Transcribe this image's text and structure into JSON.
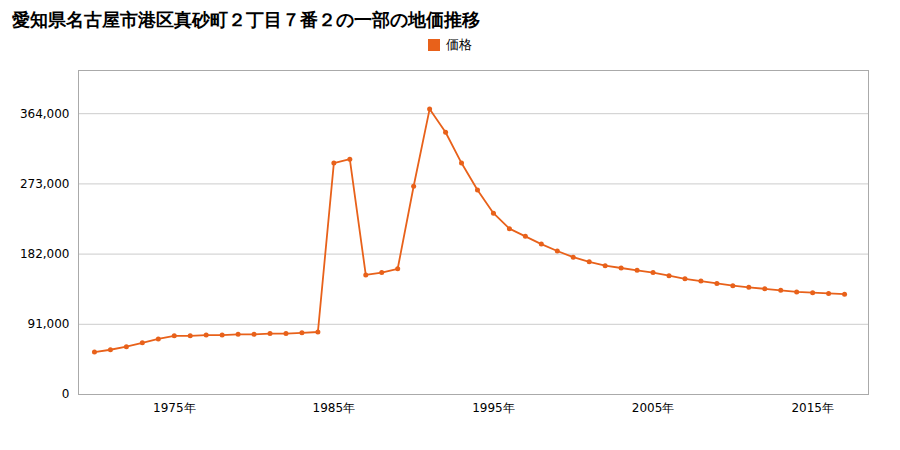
{
  "chart_data": {
    "type": "line",
    "title": "愛知県名古屋市港区真砂町２丁目７番２の一部の地価推移",
    "x": [
      1970,
      1971,
      1972,
      1973,
      1974,
      1975,
      1976,
      1977,
      1978,
      1979,
      1980,
      1981,
      1982,
      1983,
      1984,
      1985,
      1986,
      1987,
      1988,
      1989,
      1990,
      1991,
      1992,
      1993,
      1994,
      1995,
      1996,
      1997,
      1998,
      1999,
      2000,
      2001,
      2002,
      2003,
      2004,
      2005,
      2006,
      2007,
      2008,
      2009,
      2010,
      2011,
      2012,
      2013,
      2014,
      2015,
      2016,
      2017
    ],
    "series": [
      {
        "name": "価格",
        "color": "#e8611a",
        "marker": "circle",
        "line_style": "solid",
        "values": [
          55000,
          58000,
          62000,
          67000,
          72000,
          76000,
          76000,
          77000,
          77000,
          78000,
          78000,
          79000,
          79000,
          80000,
          81000,
          300000,
          305000,
          155000,
          158000,
          163000,
          270000,
          370000,
          340000,
          300000,
          265000,
          235000,
          215000,
          205000,
          195000,
          186000,
          178000,
          172000,
          167000,
          164000,
          161000,
          158000,
          154000,
          150000,
          147000,
          144000,
          141000,
          139000,
          137000,
          135000,
          133000,
          132000,
          131000,
          130000
        ]
      }
    ],
    "xlim": [
      1969,
      2018.5
    ],
    "xticks": [
      {
        "value": 1975,
        "label": "1975年"
      },
      {
        "value": 1985,
        "label": "1985年"
      },
      {
        "value": 1995,
        "label": "1995年"
      },
      {
        "value": 2005,
        "label": "2005年"
      },
      {
        "value": 2015,
        "label": "2015年"
      }
    ],
    "ylim": [
      0,
      420000
    ],
    "yticks": [
      0,
      {
        "value": 91000,
        "label": "91,000"
      },
      {
        "value": 182000,
        "label": "182,000"
      },
      {
        "value": 273000,
        "label": "273,000"
      },
      {
        "value": 364000,
        "label": "364,000"
      }
    ],
    "grid": "y",
    "legend": "top"
  }
}
